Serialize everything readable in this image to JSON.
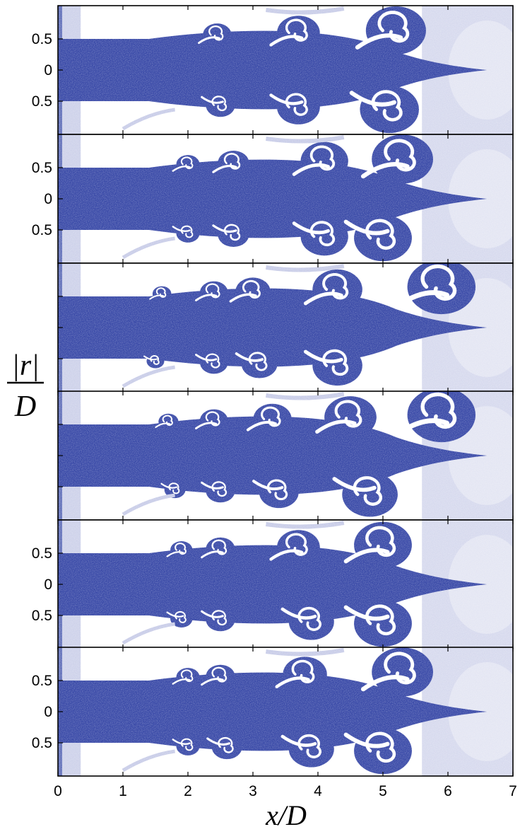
{
  "chart_data": {
    "type": "heatmap",
    "title": "",
    "xlabel": "x/D",
    "ylabel_numerator": "|r|",
    "ylabel_denominator": "D",
    "xlim": [
      0,
      7
    ],
    "x_ticks": [
      "0",
      "1",
      "2",
      "3",
      "4",
      "5",
      "6",
      "7"
    ],
    "jet_color": "#3b4ba8",
    "ambient_color": "#ffffff",
    "mixed_color": "#c9cde8",
    "panels": [
      {
        "y_ticks": [
          "0.5",
          "0",
          "0.5"
        ],
        "tick_labels_shown": true
      },
      {
        "y_ticks": [
          "0.5",
          "0",
          "0.5"
        ],
        "tick_labels_shown": true
      },
      {
        "y_ticks": [
          "",
          "",
          ""
        ],
        "tick_labels_shown": false
      },
      {
        "y_ticks": [
          "",
          "",
          ""
        ],
        "tick_labels_shown": false
      },
      {
        "y_ticks": [
          "0.5",
          "0",
          "0.5"
        ],
        "tick_labels_shown": true
      },
      {
        "y_ticks": [
          "0.5",
          "0",
          "0.5"
        ],
        "tick_labels_shown": true
      }
    ]
  }
}
